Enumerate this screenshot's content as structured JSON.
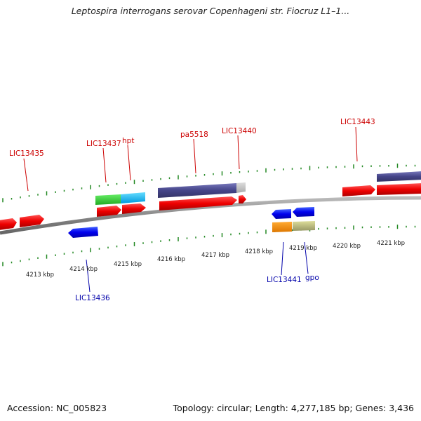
{
  "title": "Leptospira interrogans serovar Copenhageni str. Fiocruz L1–1...",
  "footer": {
    "accession_label": "Accession: NC_005823",
    "info": "Topology: circular; Length: 4,277,185 bp; Genes: 3,436"
  },
  "colors": {
    "forward_label": "#cc0000",
    "reverse_label": "#0000aa",
    "tick": "#228822",
    "backbone": "#888888"
  },
  "scale": {
    "kbp_labels": [
      "4213 kbp",
      "4214 kbp",
      "4215 kbp",
      "4216 kbp",
      "4217 kbp",
      "4218 kbp",
      "4219 kbp",
      "4220 kbp",
      "4221 kbp"
    ]
  },
  "gene_labels": {
    "forward": [
      "LIC13435",
      "LIC13437",
      "hpt",
      "pa5518",
      "LIC13440",
      "LIC13443"
    ],
    "reverse": [
      "LIC13436",
      "LIC13441",
      "gpo"
    ]
  }
}
